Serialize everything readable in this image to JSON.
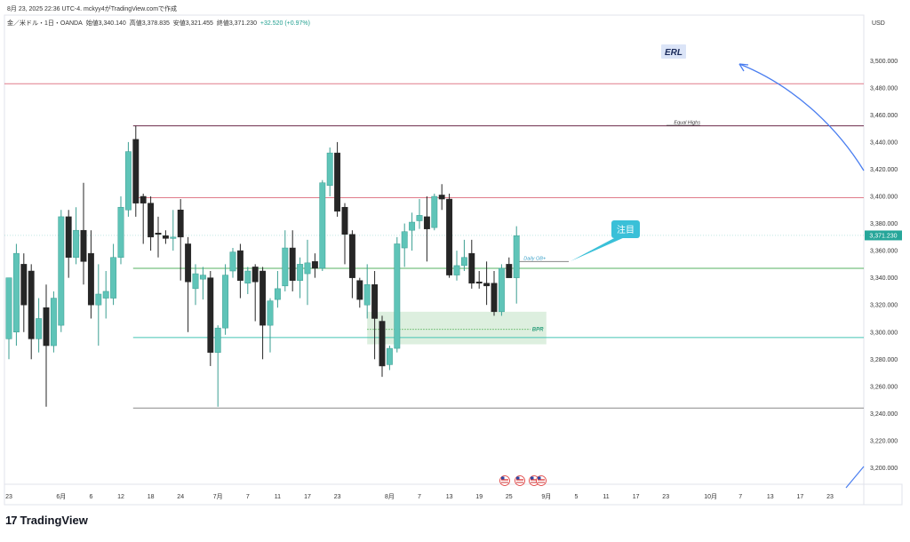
{
  "header": {
    "snapshot_line": "8月 23, 2025 22:36 UTC-4.  mckyy4がTradingView.comで作成",
    "symbol_line": "金／米ドル・1日・OANDA",
    "open": "始値3,340.140",
    "high": "高値3,378.835",
    "low": "安値3,321.455",
    "close": "終値3,371.230",
    "change": "+32.520 (+0.97%)"
  },
  "currency": "USD",
  "brand": {
    "logo": "17",
    "name": "TradingView"
  },
  "colors": {
    "up": "#5fc4b8",
    "down": "#262626",
    "red_line": "#e07b8a",
    "maroon_line": "#6b2a4a",
    "green_line": "#55b060",
    "teal_line": "#45c4b4",
    "gray_line": "#888888",
    "blue_arrow": "#4a7ef0",
    "callout": "#3ac0d8",
    "bpr_box": "#d7ecd9"
  },
  "chart_data": {
    "type": "candlestick",
    "y_axis": {
      "min": 3180,
      "max": 3520,
      "ticks": [
        "3,200.000",
        "3,220.000",
        "3,240.000",
        "3,260.000",
        "3,280.000",
        "3,300.000",
        "3,320.000",
        "3,340.000",
        "3,360.000",
        "3,380.000",
        "3,400.000",
        "3,420.000",
        "3,440.000",
        "3,460.000",
        "3,480.000",
        "3,500.000"
      ],
      "tick_values": [
        3200,
        3220,
        3240,
        3260,
        3280,
        3300,
        3320,
        3340,
        3360,
        3380,
        3400,
        3420,
        3440,
        3460,
        3480,
        3500
      ]
    },
    "x_axis": {
      "labels": [
        {
          "bar": 0,
          "text": "23"
        },
        {
          "bar": 7,
          "text": "6月"
        },
        {
          "bar": 11,
          "text": "6"
        },
        {
          "bar": 15,
          "text": "12"
        },
        {
          "bar": 19,
          "text": "18"
        },
        {
          "bar": 23,
          "text": "24"
        },
        {
          "bar": 28,
          "text": "7月"
        },
        {
          "bar": 32,
          "text": "7"
        },
        {
          "bar": 36,
          "text": "11"
        },
        {
          "bar": 40,
          "text": "17"
        },
        {
          "bar": 44,
          "text": "23"
        },
        {
          "bar": 51,
          "text": "8月"
        },
        {
          "bar": 55,
          "text": "7"
        },
        {
          "bar": 59,
          "text": "13"
        },
        {
          "bar": 63,
          "text": "19"
        },
        {
          "bar": 67,
          "text": "25"
        },
        {
          "bar": 72,
          "text": "9月"
        },
        {
          "bar": 76,
          "text": "5"
        },
        {
          "bar": 80,
          "text": "11"
        },
        {
          "bar": 84,
          "text": "17"
        },
        {
          "bar": 88,
          "text": "23"
        },
        {
          "bar": 94,
          "text": "10月"
        },
        {
          "bar": 98,
          "text": "7"
        },
        {
          "bar": 102,
          "text": "13"
        },
        {
          "bar": 106,
          "text": "17"
        },
        {
          "bar": 110,
          "text": "23"
        }
      ]
    },
    "candles": [
      {
        "o": 3295,
        "h": 3340,
        "l": 3280,
        "c": 3340
      },
      {
        "o": 3300,
        "h": 3365,
        "l": 3290,
        "c": 3358
      },
      {
        "o": 3350,
        "h": 3358,
        "l": 3300,
        "c": 3320
      },
      {
        "o": 3345,
        "h": 3350,
        "l": 3280,
        "c": 3295
      },
      {
        "o": 3295,
        "h": 3325,
        "l": 3285,
        "c": 3310
      },
      {
        "o": 3318,
        "h": 3335,
        "l": 3245,
        "c": 3290
      },
      {
        "o": 3290,
        "h": 3330,
        "l": 3285,
        "c": 3325
      },
      {
        "o": 3305,
        "h": 3390,
        "l": 3300,
        "c": 3385
      },
      {
        "o": 3385,
        "h": 3390,
        "l": 3340,
        "c": 3355
      },
      {
        "o": 3355,
        "h": 3392,
        "l": 3350,
        "c": 3375
      },
      {
        "o": 3375,
        "h": 3410,
        "l": 3335,
        "c": 3352
      },
      {
        "o": 3358,
        "h": 3375,
        "l": 3310,
        "c": 3320
      },
      {
        "o": 3320,
        "h": 3350,
        "l": 3290,
        "c": 3328
      },
      {
        "o": 3325,
        "h": 3345,
        "l": 3310,
        "c": 3330
      },
      {
        "o": 3325,
        "h": 3365,
        "l": 3320,
        "c": 3355
      },
      {
        "o": 3355,
        "h": 3400,
        "l": 3350,
        "c": 3392
      },
      {
        "o": 3390,
        "h": 3440,
        "l": 3385,
        "c": 3433
      },
      {
        "o": 3442,
        "h": 3452,
        "l": 3385,
        "c": 3395
      },
      {
        "o": 3400,
        "h": 3402,
        "l": 3365,
        "c": 3395
      },
      {
        "o": 3395,
        "h": 3400,
        "l": 3360,
        "c": 3370
      },
      {
        "o": 3373,
        "h": 3385,
        "l": 3355,
        "c": 3372
      },
      {
        "o": 3371,
        "h": 3375,
        "l": 3365,
        "c": 3369
      },
      {
        "o": 3369,
        "h": 3390,
        "l": 3360,
        "c": 3370
      },
      {
        "o": 3390,
        "h": 3398,
        "l": 3338,
        "c": 3370
      },
      {
        "o": 3365,
        "h": 3370,
        "l": 3300,
        "c": 3337
      },
      {
        "o": 3332,
        "h": 3350,
        "l": 3320,
        "c": 3343
      },
      {
        "o": 3339,
        "h": 3348,
        "l": 3324,
        "c": 3342
      },
      {
        "o": 3340,
        "h": 3345,
        "l": 3275,
        "c": 3285
      },
      {
        "o": 3285,
        "h": 3305,
        "l": 3245,
        "c": 3303
      },
      {
        "o": 3303,
        "h": 3350,
        "l": 3298,
        "c": 3342
      },
      {
        "o": 3345,
        "h": 3362,
        "l": 3340,
        "c": 3359
      },
      {
        "o": 3360,
        "h": 3365,
        "l": 3325,
        "c": 3338
      },
      {
        "o": 3336,
        "h": 3348,
        "l": 3328,
        "c": 3345
      },
      {
        "o": 3348,
        "h": 3350,
        "l": 3308,
        "c": 3337
      },
      {
        "o": 3345,
        "h": 3348,
        "l": 3280,
        "c": 3305
      },
      {
        "o": 3305,
        "h": 3325,
        "l": 3285,
        "c": 3323
      },
      {
        "o": 3324,
        "h": 3345,
        "l": 3318,
        "c": 3332
      },
      {
        "o": 3334,
        "h": 3375,
        "l": 3330,
        "c": 3362
      },
      {
        "o": 3362,
        "h": 3375,
        "l": 3330,
        "c": 3338
      },
      {
        "o": 3338,
        "h": 3355,
        "l": 3325,
        "c": 3350
      },
      {
        "o": 3343,
        "h": 3368,
        "l": 3320,
        "c": 3351
      },
      {
        "o": 3352,
        "h": 3358,
        "l": 3340,
        "c": 3347
      },
      {
        "o": 3347,
        "h": 3412,
        "l": 3345,
        "c": 3410
      },
      {
        "o": 3408,
        "h": 3436,
        "l": 3400,
        "c": 3432
      },
      {
        "o": 3432,
        "h": 3440,
        "l": 3385,
        "c": 3389
      },
      {
        "o": 3392,
        "h": 3395,
        "l": 3350,
        "c": 3372
      },
      {
        "o": 3372,
        "h": 3375,
        "l": 3325,
        "c": 3340
      },
      {
        "o": 3338,
        "h": 3340,
        "l": 3318,
        "c": 3324
      },
      {
        "o": 3320,
        "h": 3350,
        "l": 3310,
        "c": 3335
      },
      {
        "o": 3335,
        "h": 3345,
        "l": 3280,
        "c": 3310
      },
      {
        "o": 3308,
        "h": 3312,
        "l": 3267,
        "c": 3275
      },
      {
        "o": 3276,
        "h": 3290,
        "l": 3272,
        "c": 3288
      },
      {
        "o": 3288,
        "h": 3370,
        "l": 3285,
        "c": 3365
      },
      {
        "o": 3362,
        "h": 3380,
        "l": 3348,
        "c": 3374
      },
      {
        "o": 3375,
        "h": 3388,
        "l": 3360,
        "c": 3381
      },
      {
        "o": 3382,
        "h": 3398,
        "l": 3376,
        "c": 3386
      },
      {
        "o": 3385,
        "h": 3400,
        "l": 3352,
        "c": 3376
      },
      {
        "o": 3377,
        "h": 3402,
        "l": 3375,
        "c": 3400
      },
      {
        "o": 3401,
        "h": 3409,
        "l": 3390,
        "c": 3398
      },
      {
        "o": 3398,
        "h": 3402,
        "l": 3340,
        "c": 3342
      },
      {
        "o": 3342,
        "h": 3360,
        "l": 3338,
        "c": 3349
      },
      {
        "o": 3349,
        "h": 3368,
        "l": 3345,
        "c": 3355
      },
      {
        "o": 3358,
        "h": 3368,
        "l": 3332,
        "c": 3336
      },
      {
        "o": 3337,
        "h": 3345,
        "l": 3332,
        "c": 3336
      },
      {
        "o": 3336,
        "h": 3352,
        "l": 3320,
        "c": 3334
      },
      {
        "o": 3336,
        "h": 3345,
        "l": 3312,
        "c": 3315
      },
      {
        "o": 3315,
        "h": 3350,
        "l": 3312,
        "c": 3347
      },
      {
        "o": 3350,
        "h": 3355,
        "l": 3340,
        "c": 3340
      },
      {
        "o": 3340,
        "h": 3378,
        "l": 3321,
        "c": 3371
      }
    ],
    "levels": [
      {
        "name": "red-upper",
        "price": 3483,
        "from_bar": -1,
        "to_bar": 113,
        "color": "red_line"
      },
      {
        "name": "equal-highs",
        "price": 3452,
        "from_bar": 17,
        "to_bar": 113,
        "color": "maroon_line",
        "label": "Equal Highs"
      },
      {
        "name": "red-mid",
        "price": 3399,
        "from_bar": 17,
        "to_bar": 113,
        "color": "red_line"
      },
      {
        "name": "daily-ob",
        "price": 3352,
        "from_bar": 68,
        "to_bar": 75,
        "color": "gray_line",
        "label": "Daily OB+"
      },
      {
        "name": "green-mid",
        "price": 3347,
        "from_bar": 17,
        "to_bar": 113,
        "color": "green_line"
      },
      {
        "name": "teal-lower",
        "price": 3296,
        "from_bar": 17,
        "to_bar": 113,
        "color": "teal_line"
      },
      {
        "name": "gray-low",
        "price": 3244,
        "from_bar": 17,
        "to_bar": 113,
        "color": "gray_line"
      }
    ],
    "bpr_zone": {
      "label": "BPR",
      "price_top": 3315,
      "price_bottom": 3291,
      "mid": 3302,
      "from_bar": 48,
      "to_bar": 72
    },
    "annotations": {
      "erl": {
        "label": "ERL",
        "bar": 90,
        "price": 3510
      },
      "callout": {
        "label": "注目",
        "bar": 83,
        "price": 3375
      },
      "last_price": "3,371.230"
    }
  }
}
